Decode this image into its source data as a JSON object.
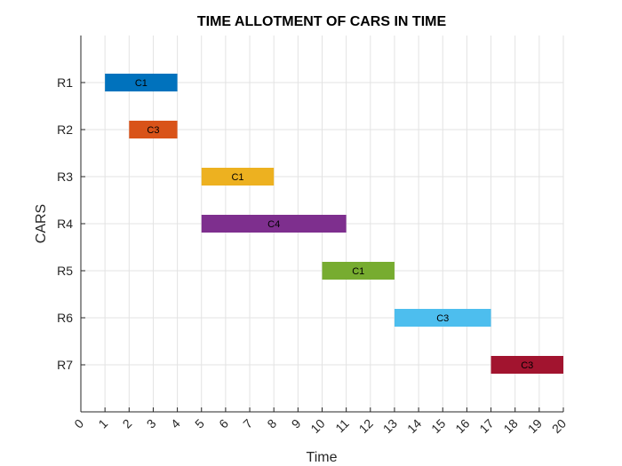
{
  "chart_data": {
    "type": "bar",
    "orientation": "horizontal-gantt",
    "title": "TIME ALLOTMENT OF CARS IN TIME",
    "xlabel": "Time",
    "ylabel": "CARS",
    "xlim": [
      0,
      20
    ],
    "xticks": [
      "0",
      "1",
      "2",
      "3",
      "4",
      "5",
      "6",
      "7",
      "8",
      "9",
      "10",
      "11",
      "12",
      "13",
      "14",
      "15",
      "16",
      "17",
      "18",
      "19",
      "20"
    ],
    "categories": [
      "R1",
      "R2",
      "R3",
      "R4",
      "R5",
      "R6",
      "R7"
    ],
    "grid": true,
    "bars": [
      {
        "row": "R1",
        "start": 1,
        "end": 4,
        "label": "C1",
        "color": "#0072BD"
      },
      {
        "row": "R2",
        "start": 2,
        "end": 4,
        "label": "C3",
        "color": "#D95319"
      },
      {
        "row": "R3",
        "start": 5,
        "end": 8,
        "label": "C1",
        "color": "#EDB120"
      },
      {
        "row": "R4",
        "start": 5,
        "end": 11,
        "label": "C4",
        "color": "#7E2F8E"
      },
      {
        "row": "R5",
        "start": 10,
        "end": 13,
        "label": "C1",
        "color": "#77AC30"
      },
      {
        "row": "R6",
        "start": 13,
        "end": 17,
        "label": "C3",
        "color": "#4DBEEE"
      },
      {
        "row": "R7",
        "start": 17,
        "end": 20,
        "label": "C3",
        "color": "#A2142F"
      }
    ]
  }
}
